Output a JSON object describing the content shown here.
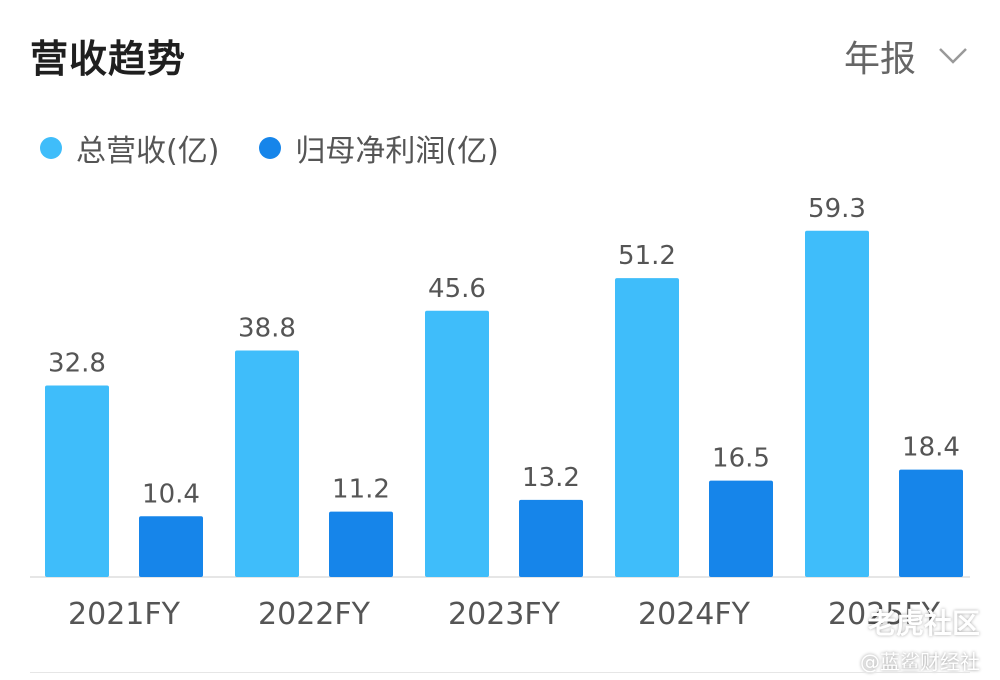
{
  "header": {
    "title": "营收趋势",
    "period_label": "年报"
  },
  "legend": [
    {
      "label": "总营收(亿)",
      "color": "#3fbdfa"
    },
    {
      "label": "归母净利润(亿)",
      "color": "#1685ea"
    }
  ],
  "chart_data": {
    "type": "bar",
    "categories": [
      "2021FY",
      "2022FY",
      "2023FY",
      "2024FY",
      "2025FY"
    ],
    "series": [
      {
        "name": "总营收(亿)",
        "values": [
          32.8,
          38.8,
          45.6,
          51.2,
          59.3
        ],
        "color": "#3fbdfa"
      },
      {
        "name": "归母净利润(亿)",
        "values": [
          10.4,
          11.2,
          13.2,
          16.5,
          18.4
        ],
        "color": "#1685ea"
      }
    ],
    "ylim": [
      0,
      68
    ],
    "grid": false,
    "legend_position": "top-left"
  },
  "watermarks": {
    "line1": "老虎社区",
    "line2": "@蓝鲨财经社"
  }
}
